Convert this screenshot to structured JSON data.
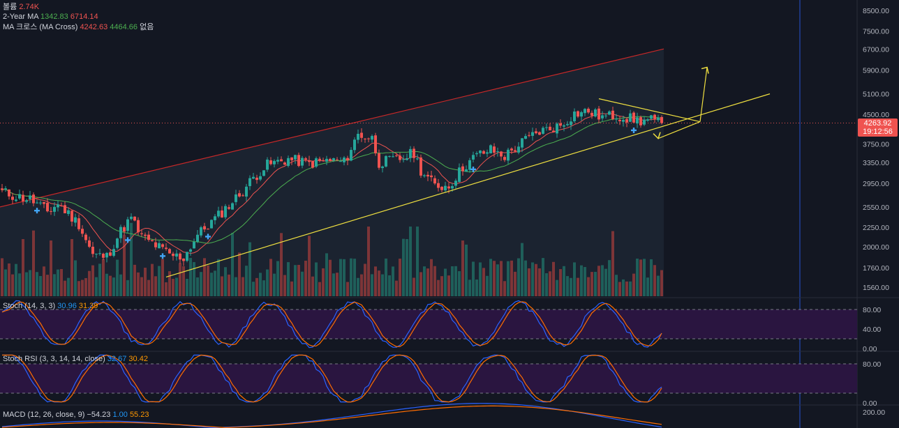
{
  "legend": {
    "volume": {
      "label": "볼륨",
      "value": "2.74K"
    },
    "ma2y": {
      "label": "2-Year MA",
      "v1": "1342.83",
      "v2": "6714.14"
    },
    "macross": {
      "label": "MA 크로스 (MA Cross)",
      "v1": "4242.63",
      "v2": "4464.66",
      "v3": "없음"
    }
  },
  "price_tag": {
    "price": "4263.92",
    "time": "19:12:56"
  },
  "colors": {
    "up": "#26a69a",
    "down": "#ef5350",
    "ma_fast": "#ef5350",
    "ma_slow": "#4caf50",
    "trend": "#f0e040",
    "ma2y_upper": "#c62828",
    "stoch_k": "#2962ff",
    "stoch_d": "#ff6d00",
    "osc_band": "#2a1540",
    "vline": "#2962ff"
  },
  "chart_data": [
    {
      "type": "candlestick",
      "title": "",
      "scale": "log",
      "y_ticks": [
        "8500.00",
        "7500.00",
        "6700.00",
        "5900.00",
        "5100.00",
        "4500.00",
        "3750.00",
        "3350.00",
        "2950.00",
        "2550.00",
        "2250.00",
        "2000.00",
        "1760.00",
        "1560.00"
      ],
      "tick_values": [
        8500,
        7500,
        6700,
        5900,
        5100,
        4500,
        3750,
        3350,
        2950,
        2550,
        2250,
        2000,
        1760,
        1560
      ],
      "ylim": [
        1500,
        9300
      ],
      "last_price": 4263.92,
      "anchors": [
        [
          0,
          2800
        ],
        [
          4,
          2720
        ],
        [
          8,
          2680
        ],
        [
          13,
          2480
        ],
        [
          16,
          2600
        ],
        [
          22,
          2300
        ],
        [
          26,
          1900
        ],
        [
          30,
          1880
        ],
        [
          34,
          2200
        ],
        [
          37,
          2380
        ],
        [
          40,
          2120
        ],
        [
          44,
          2020
        ],
        [
          48,
          1900
        ],
        [
          52,
          1870
        ],
        [
          56,
          2150
        ],
        [
          62,
          2420
        ],
        [
          68,
          2750
        ],
        [
          72,
          3050
        ],
        [
          76,
          3300
        ],
        [
          82,
          3420
        ],
        [
          88,
          3330
        ],
        [
          94,
          3400
        ],
        [
          98,
          3350
        ],
        [
          102,
          3980
        ],
        [
          106,
          3880
        ],
        [
          108,
          3350
        ],
        [
          114,
          3420
        ],
        [
          118,
          3550
        ],
        [
          120,
          3200
        ],
        [
          124,
          2900
        ],
        [
          128,
          2900
        ],
        [
          132,
          3250
        ],
        [
          136,
          3500
        ],
        [
          140,
          3620
        ],
        [
          144,
          3480
        ],
        [
          150,
          3850
        ],
        [
          154,
          4050
        ],
        [
          160,
          4200
        ],
        [
          164,
          4520
        ],
        [
          168,
          4580
        ],
        [
          172,
          4420
        ],
        [
          176,
          4480
        ],
        [
          180,
          4380
        ],
        [
          183,
          4320
        ],
        [
          186,
          4350
        ],
        [
          188,
          4263.92
        ]
      ],
      "marks": [
        [
          10,
          "up"
        ],
        [
          36,
          "up"
        ],
        [
          46,
          "up"
        ],
        [
          59,
          "up"
        ],
        [
          135,
          "up"
        ],
        [
          181,
          "up"
        ]
      ],
      "trendlines": [
        {
          "name": "support",
          "points": [
            [
              47,
              1660
            ],
            [
              220,
              5100
            ]
          ]
        },
        {
          "name": "wedge-top",
          "points": [
            [
              171,
              4950
            ],
            [
              200,
              4300
            ]
          ]
        },
        {
          "name": "wedge-bottom",
          "points": [
            [
              188,
              3880
            ],
            [
              200,
              4300
            ]
          ]
        },
        {
          "name": "arrow",
          "points": [
            [
              200,
              4300
            ],
            [
              202,
              6000
            ]
          ]
        }
      ],
      "ma2y_upper": {
        "start": 2550,
        "end": 6714.14
      },
      "ma2y_lower": 1342.83
    },
    {
      "type": "bar",
      "title": "볼륨",
      "last_value": "2.74K"
    },
    {
      "type": "line",
      "title": "Stoch (14, 3, 3)",
      "series": [
        {
          "name": "%K",
          "last": 30.96
        },
        {
          "name": "%D",
          "last": 31.39
        }
      ],
      "ylim": [
        0,
        100
      ],
      "y_ticks": [
        "80.00",
        "40.00",
        "0.00"
      ],
      "band": [
        20,
        80
      ]
    },
    {
      "type": "line",
      "title": "Stoch RSI (3, 3, 14, 14, close)",
      "series": [
        {
          "name": "K",
          "last": 32.67
        },
        {
          "name": "D",
          "last": 30.42
        }
      ],
      "ylim": [
        0,
        100
      ],
      "y_ticks": [
        "80.00",
        "0.00"
      ],
      "band": [
        20,
        80
      ]
    },
    {
      "type": "line",
      "title": "MACD (12, 26, close, 9)",
      "series": [
        {
          "name": "Histogram",
          "last": -54.23
        },
        {
          "name": "MACD",
          "last": 1.0
        },
        {
          "name": "Signal",
          "last": 55.23
        }
      ],
      "y_ticks": [
        "200.00"
      ]
    }
  ],
  "labels": {
    "stoch": {
      "title": "Stoch (14, 3, 3)",
      "k": "30.96",
      "d": "31.39",
      "ticks": [
        "80.00",
        "40.00",
        "0.00"
      ]
    },
    "stochrsi": {
      "title": "Stoch RSI (3, 3, 14, 14, close)",
      "k": "32.67",
      "d": "30.42",
      "ticks": [
        "80.00",
        "0.00"
      ]
    },
    "macd": {
      "title": "MACD (12, 26, close, 9)",
      "hist": "−54.23",
      "macd": "1.00",
      "signal": "55.23",
      "tick": "200.00"
    }
  }
}
